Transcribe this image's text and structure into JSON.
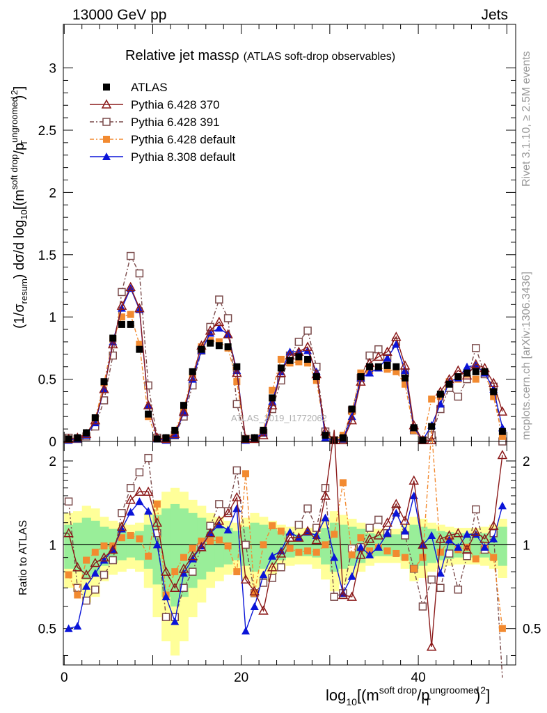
{
  "header": {
    "energy": "13000 GeV pp",
    "process": "Jets"
  },
  "side_labels": {
    "rivet": "Rivet 3.1.10, ≥ 2.5M events",
    "mcplots": "mcplots.cern.ch [arXiv:1306.3436]"
  },
  "watermark": "ATLAS_2019_I1772062",
  "axes": {
    "main_ylabel_parts": {
      "a": "(1/σ",
      "a_sub": "resum",
      "b": ") dσ/d log",
      "b_sub": "10",
      "c": "[(m",
      "c_sup": "soft drop",
      "d": "/p",
      "d_sup": "ungroomed",
      "d_sub": "T",
      "e": ")",
      "e_sup": "2",
      "f": "]"
    },
    "ratio_ylabel": "Ratio to ATLAS",
    "xlabel_parts": {
      "a": "log",
      "a_sub": "10",
      "b": "[(m",
      "b_sup": "soft drop",
      "c": "/p",
      "c_sup": "ungroomed",
      "c_sub": "T",
      "d": ")",
      "d_sup": "2",
      "e": "]"
    }
  },
  "chart_data": [
    {
      "type": "scatter",
      "title": "Relative jet massρ",
      "subtitle": "(ATLAS soft-drop observables)",
      "xlim": [
        -0.1,
        51.0
      ],
      "ylim": [
        0,
        3.35
      ],
      "yticks": [
        "0",
        "0.5",
        "1",
        "1.5",
        "2",
        "2.5",
        "3"
      ],
      "ytick_values": [
        0,
        0.5,
        1,
        1.5,
        2,
        2.5,
        3
      ],
      "legend_position": "top-left",
      "x": [
        0.5,
        1.5,
        2.5,
        3.5,
        4.5,
        5.5,
        6.5,
        7.5,
        8.5,
        9.5,
        10.5,
        11.5,
        12.5,
        13.5,
        14.5,
        15.5,
        16.5,
        17.5,
        18.5,
        19.5,
        20.5,
        21.5,
        22.5,
        23.5,
        24.5,
        25.5,
        26.5,
        27.5,
        28.5,
        29.5,
        30.5,
        31.5,
        32.5,
        33.5,
        34.5,
        35.5,
        36.5,
        37.5,
        38.5,
        39.5,
        40.5,
        41.5,
        42.5,
        43.5,
        44.5,
        45.5,
        46.5,
        47.5,
        48.5,
        49.5
      ],
      "series": [
        {
          "name": "ATLAS",
          "color": "#000000",
          "marker": "square",
          "dash": "none",
          "values": [
            0.02,
            0.03,
            0.07,
            0.19,
            0.48,
            0.83,
            0.94,
            0.94,
            0.74,
            0.22,
            0.02,
            0.03,
            0.09,
            0.29,
            0.56,
            0.74,
            0.79,
            0.77,
            0.76,
            0.6,
            0.02,
            0.03,
            0.09,
            0.35,
            0.59,
            0.65,
            0.68,
            0.66,
            0.52,
            0.05,
            0.01,
            0.03,
            0.26,
            0.52,
            0.6,
            0.6,
            0.61,
            0.6,
            0.51,
            0.11,
            0.01,
            0.12,
            0.38,
            0.46,
            0.52,
            0.55,
            0.56,
            0.56,
            0.4,
            0.08
          ]
        },
        {
          "name": "Pythia 6.428 370",
          "color": "#8b1a1a",
          "marker": "triangle-open",
          "dash": "none",
          "values": [
            0.02,
            0.03,
            0.06,
            0.17,
            0.42,
            0.78,
            1.09,
            1.24,
            1.07,
            0.29,
            0.03,
            0.02,
            0.06,
            0.24,
            0.52,
            0.77,
            0.89,
            0.96,
            0.86,
            0.55,
            0.02,
            0.02,
            0.05,
            0.29,
            0.55,
            0.69,
            0.72,
            0.76,
            0.54,
            0.08,
            0.01,
            0.01,
            0.17,
            0.48,
            0.63,
            0.68,
            0.72,
            0.84,
            0.61,
            0.13,
            0.01,
            0.01,
            0.4,
            0.5,
            0.57,
            0.53,
            0.62,
            0.59,
            0.47,
            0.24
          ]
        },
        {
          "name": "Pythia 6.428 391",
          "color": "#7a4a4a",
          "marker": "square-open",
          "dash": "6,3,2,3",
          "values": [
            0.03,
            0.02,
            0.04,
            0.12,
            0.33,
            0.69,
            1.2,
            1.49,
            1.35,
            0.45,
            0.03,
            0.02,
            0.05,
            0.2,
            0.45,
            0.73,
            0.92,
            1.14,
            0.99,
            0.3,
            0.02,
            0.02,
            0.07,
            0.26,
            0.49,
            0.69,
            0.8,
            0.89,
            0.6,
            0.08,
            0.01,
            0.02,
            0.25,
            0.51,
            0.69,
            0.74,
            0.67,
            0.8,
            0.55,
            0.09,
            0.01,
            0.05,
            0.26,
            0.43,
            0.36,
            0.5,
            0.75,
            0.54,
            0.44,
            0.0
          ]
        },
        {
          "name": "Pythia 6.428 default",
          "color": "#f28a30",
          "marker": "square",
          "dash": "6,3,2,3",
          "values": [
            0.02,
            0.02,
            0.06,
            0.18,
            0.47,
            0.82,
            1.0,
            1.02,
            0.78,
            0.2,
            0.02,
            0.02,
            0.08,
            0.26,
            0.54,
            0.76,
            0.81,
            0.8,
            0.75,
            0.48,
            0.02,
            0.02,
            0.09,
            0.41,
            0.66,
            0.63,
            0.64,
            0.63,
            0.49,
            0.05,
            0.01,
            0.05,
            0.24,
            0.55,
            0.57,
            0.59,
            0.58,
            0.56,
            0.46,
            0.09,
            0.01,
            0.34,
            0.36,
            0.48,
            0.5,
            0.54,
            0.5,
            0.55,
            0.36,
            0.04
          ]
        },
        {
          "name": "Pythia 8.308 default",
          "color": "#0a14d8",
          "marker": "triangle",
          "dash": "none",
          "values": [
            0.01,
            0.02,
            0.05,
            0.15,
            0.42,
            0.8,
            1.07,
            1.23,
            1.06,
            0.29,
            0.02,
            0.01,
            0.05,
            0.23,
            0.5,
            0.73,
            0.87,
            0.91,
            0.86,
            0.57,
            0.01,
            0.02,
            0.07,
            0.32,
            0.56,
            0.72,
            0.72,
            0.73,
            0.56,
            0.03,
            0.01,
            0.02,
            0.2,
            0.51,
            0.55,
            0.59,
            0.67,
            0.78,
            0.57,
            0.11,
            0.01,
            0.13,
            0.3,
            0.48,
            0.51,
            0.6,
            0.61,
            0.55,
            0.42,
            0.11
          ]
        }
      ]
    },
    {
      "type": "line",
      "ylabel": "Ratio to ATLAS",
      "xlim": [
        -0.1,
        51.0
      ],
      "ylim": [
        0.37,
        2.35
      ],
      "yscale": "log",
      "yticks": [
        "0.5",
        "1",
        "2"
      ],
      "ytick_values": [
        0.5,
        1,
        2
      ],
      "xticks": [
        "0",
        "20",
        "40"
      ],
      "xtick_values": [
        0,
        20,
        40
      ],
      "band_colors": {
        "outer": "#ffff99",
        "inner": "#99ee99"
      },
      "band_inner_halfwidth": [
        0.18,
        0.2,
        0.25,
        0.22,
        0.16,
        0.14,
        0.12,
        0.1,
        0.12,
        0.18,
        0.28,
        0.35,
        0.4,
        0.35,
        0.3,
        0.25,
        0.2,
        0.17,
        0.15,
        0.12,
        0.16,
        0.2,
        0.18,
        0.15,
        0.12,
        0.1,
        0.09,
        0.09,
        0.1,
        0.15,
        0.2,
        0.18,
        0.16,
        0.14,
        0.1,
        0.09,
        0.09,
        0.09,
        0.12,
        0.18,
        0.16,
        0.14,
        0.12,
        0.11,
        0.1,
        0.1,
        0.1,
        0.1,
        0.12,
        0.16
      ],
      "band_outer_halfwidth": [
        0.3,
        0.32,
        0.38,
        0.35,
        0.26,
        0.22,
        0.2,
        0.18,
        0.2,
        0.3,
        0.45,
        0.55,
        0.6,
        0.55,
        0.45,
        0.38,
        0.3,
        0.26,
        0.22,
        0.2,
        0.25,
        0.3,
        0.26,
        0.22,
        0.18,
        0.16,
        0.15,
        0.15,
        0.18,
        0.25,
        0.32,
        0.28,
        0.24,
        0.2,
        0.16,
        0.14,
        0.14,
        0.14,
        0.18,
        0.26,
        0.24,
        0.2,
        0.18,
        0.16,
        0.15,
        0.15,
        0.15,
        0.16,
        0.18,
        0.24
      ],
      "series": [
        {
          "name": "Pythia 6.428 370",
          "values": [
            1.1,
            0.83,
            0.78,
            0.86,
            0.9,
            0.96,
            1.16,
            1.45,
            1.55,
            1.55,
            1.2,
            0.8,
            0.7,
            0.82,
            0.91,
            0.98,
            1.1,
            1.22,
            1.3,
            1.48,
            0.75,
            0.68,
            0.58,
            0.83,
            0.93,
            1.06,
            1.06,
            1.12,
            1.04,
            1.5,
            3.1,
            0.66,
            0.65,
            0.92,
            1.05,
            1.08,
            1.2,
            1.4,
            1.22,
            1.7,
            1.0,
            0.43,
            1.05,
            1.08,
            1.1,
            0.96,
            1.11,
            1.05,
            1.17,
            2.1
          ]
        },
        {
          "name": "Pythia 6.428 391",
          "values": [
            1.43,
            0.7,
            0.63,
            0.69,
            0.78,
            0.88,
            1.3,
            1.6,
            1.82,
            2.05,
            1.1,
            0.55,
            0.55,
            0.7,
            0.8,
            0.98,
            1.17,
            1.4,
            1.32,
            1.85,
            1.0,
            0.67,
            0.73,
            0.76,
            0.83,
            1.06,
            1.18,
            1.35,
            1.15,
            1.6,
            0.65,
            0.67,
            0.97,
            0.98,
            1.15,
            1.23,
            1.1,
            1.33,
            1.08,
            0.82,
            0.6,
            0.75,
            0.7,
            0.93,
            0.69,
            0.91,
            1.34,
            0.96,
            1.1,
            0.3
          ]
        },
        {
          "name": "Pythia 6.428 default",
          "values": [
            0.78,
            0.66,
            0.88,
            0.94,
            0.99,
            0.99,
            1.06,
            1.08,
            1.05,
            0.91,
            1.4,
            0.66,
            0.8,
            0.9,
            0.97,
            1.03,
            1.03,
            1.04,
            0.99,
            0.8,
            1.8,
            0.67,
            1.0,
            1.17,
            1.12,
            0.97,
            0.94,
            0.95,
            0.94,
            1.0,
            1.09,
            1.67,
            0.92,
            1.06,
            0.95,
            0.98,
            0.95,
            0.93,
            0.9,
            0.82,
            0.9,
            2.8,
            0.94,
            1.04,
            0.96,
            0.98,
            0.89,
            0.98,
            0.9,
            0.5
          ]
        },
        {
          "name": "Pythia 8.308 default",
          "values": [
            0.5,
            0.51,
            0.71,
            0.79,
            0.88,
            0.96,
            1.14,
            1.31,
            1.43,
            1.32,
            1.0,
            0.65,
            0.53,
            0.79,
            0.89,
            0.99,
            1.1,
            1.18,
            1.13,
            1.35,
            0.49,
            0.6,
            0.78,
            0.91,
            0.95,
            1.11,
            1.06,
            1.11,
            1.08,
            1.25,
            0.9,
            0.67,
            0.77,
            0.98,
            0.92,
            0.98,
            1.1,
            1.3,
            1.12,
            1.5,
            1.0,
            1.08,
            0.79,
            1.04,
            0.98,
            1.09,
            1.09,
            0.98,
            1.05,
            1.38
          ]
        }
      ]
    }
  ]
}
